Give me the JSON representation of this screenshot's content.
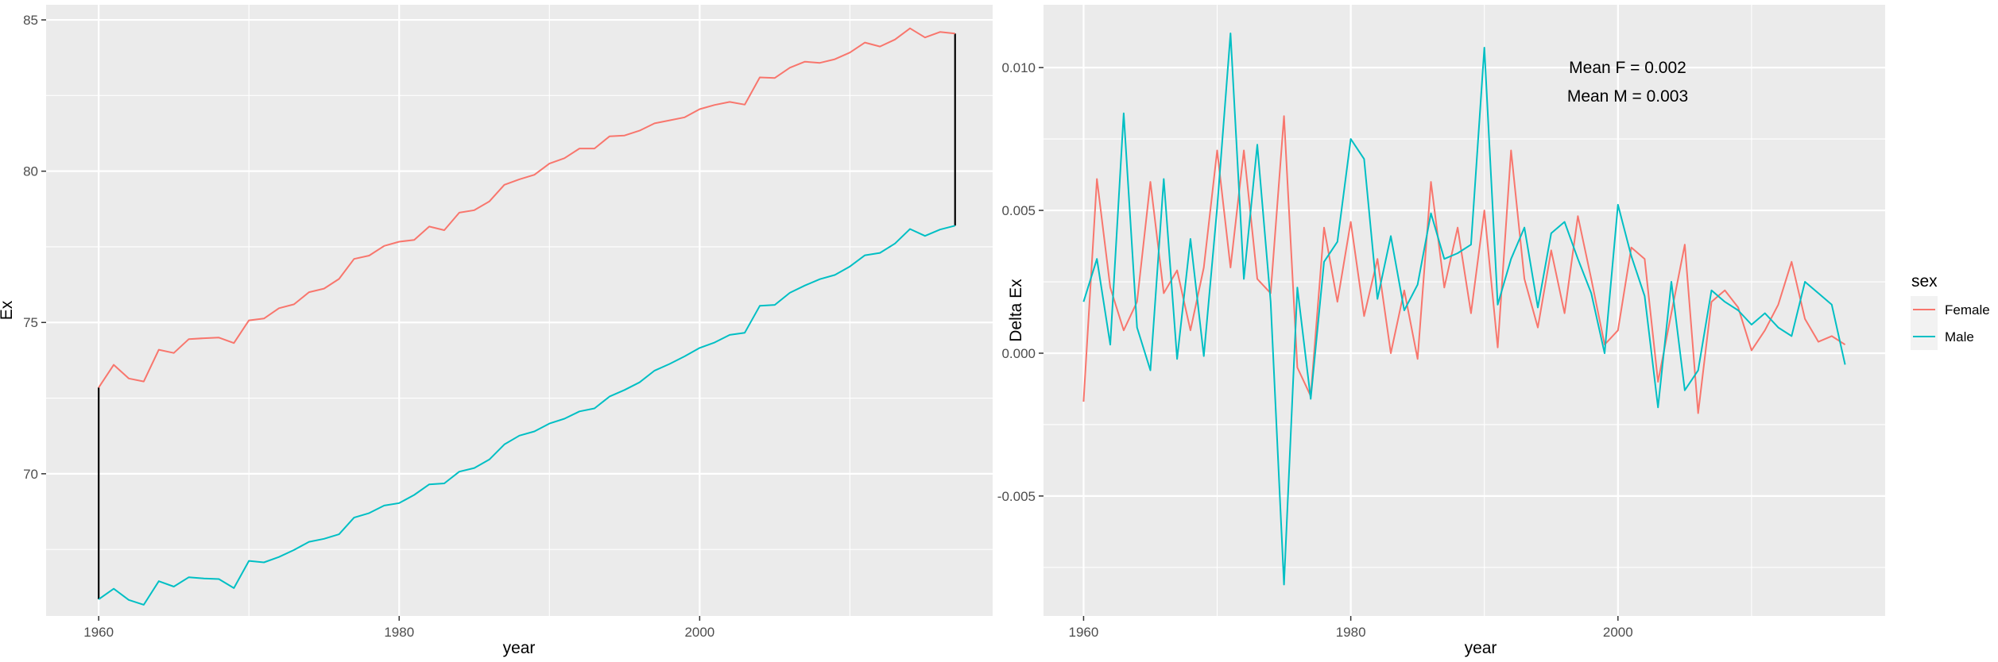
{
  "colors": {
    "female": "#F8766D",
    "male": "#00BFC4",
    "panel": "#EBEBEB",
    "gap": "#000000"
  },
  "legend": {
    "title": "sex",
    "items": [
      {
        "label": "Female",
        "color": "#F8766D"
      },
      {
        "label": "Male",
        "color": "#00BFC4"
      }
    ]
  },
  "chart_data": [
    {
      "type": "line",
      "xlabel": "year",
      "ylabel": "Ex",
      "xlim": [
        1956.5,
        2019.5
      ],
      "ylim": [
        65.3,
        85.5
      ],
      "x_breaks": [
        1960,
        1980,
        2000
      ],
      "x_tick_labels": [
        "1960",
        "1980",
        "2000"
      ],
      "y_breaks": [
        70,
        75,
        80,
        85
      ],
      "y_tick_labels": [
        "70",
        "75",
        "80",
        "85"
      ],
      "grid": true,
      "x": [
        1960,
        1961,
        1962,
        1963,
        1964,
        1965,
        1966,
        1967,
        1968,
        1969,
        1970,
        1971,
        1972,
        1973,
        1974,
        1975,
        1976,
        1977,
        1978,
        1979,
        1980,
        1981,
        1982,
        1983,
        1984,
        1985,
        1986,
        1987,
        1988,
        1989,
        1990,
        1991,
        1992,
        1993,
        1994,
        1995,
        1996,
        1997,
        1998,
        1999,
        2000,
        2001,
        2002,
        2003,
        2004,
        2005,
        2006,
        2007,
        2008,
        2009,
        2010,
        2011,
        2012,
        2013,
        2014,
        2015,
        2016,
        2017
      ],
      "series": [
        {
          "name": "Female",
          "values": [
            72.85,
            73.6,
            73.15,
            73.05,
            74.1,
            73.99,
            74.45,
            74.48,
            74.5,
            74.32,
            75.07,
            75.13,
            75.47,
            75.6,
            76.0,
            76.12,
            76.44,
            77.1,
            77.21,
            77.53,
            77.67,
            77.73,
            78.17,
            78.05,
            78.63,
            78.71,
            79.0,
            79.55,
            79.73,
            79.88,
            80.25,
            80.43,
            80.75,
            80.75,
            81.15,
            81.18,
            81.34,
            81.58,
            81.68,
            81.78,
            82.05,
            82.19,
            82.29,
            82.2,
            83.1,
            83.08,
            83.42,
            83.62,
            83.58,
            83.7,
            83.92,
            84.25,
            84.12,
            84.35,
            84.72,
            84.42,
            84.6,
            84.55
          ]
        },
        {
          "name": "Male",
          "values": [
            65.85,
            66.2,
            65.83,
            65.67,
            66.45,
            66.27,
            66.58,
            66.54,
            66.52,
            66.22,
            67.12,
            67.07,
            67.25,
            67.48,
            67.75,
            67.85,
            68.0,
            68.55,
            68.7,
            68.95,
            69.03,
            69.3,
            69.65,
            69.68,
            70.07,
            70.19,
            70.47,
            70.97,
            71.26,
            71.4,
            71.66,
            71.82,
            72.06,
            72.16,
            72.55,
            72.77,
            73.02,
            73.41,
            73.63,
            73.88,
            74.16,
            74.34,
            74.59,
            74.66,
            75.55,
            75.58,
            75.98,
            76.22,
            76.43,
            76.57,
            76.85,
            77.22,
            77.3,
            77.61,
            78.09,
            77.86,
            78.07,
            78.2
          ]
        }
      ],
      "gap_segments": [
        {
          "x": 1960,
          "from": 65.85,
          "to": 72.85
        },
        {
          "x": 2017,
          "from": 78.2,
          "to": 84.55
        }
      ]
    },
    {
      "type": "line",
      "xlabel": "year",
      "ylabel": "Delta Ex",
      "xlim": [
        1957,
        2020
      ],
      "ylim": [
        -0.0092,
        0.0122
      ],
      "x_breaks": [
        1960,
        1980,
        2000
      ],
      "x_tick_labels": [
        "1960",
        "1980",
        "2000"
      ],
      "y_breaks": [
        -0.005,
        0.0,
        0.005,
        0.01
      ],
      "y_tick_labels": [
        "-0.005",
        "0.000",
        "0.005",
        "0.010"
      ],
      "grid": true,
      "annotations": [
        "Mean F = 0.002",
        "Mean M = 0.003"
      ],
      "x": [
        1960,
        1961,
        1962,
        1963,
        1964,
        1965,
        1966,
        1967,
        1968,
        1969,
        1970,
        1971,
        1972,
        1973,
        1974,
        1975,
        1976,
        1977,
        1978,
        1979,
        1980,
        1981,
        1982,
        1983,
        1984,
        1985,
        1986,
        1987,
        1988,
        1989,
        1990,
        1991,
        1992,
        1993,
        1994,
        1995,
        1996,
        1997,
        1998,
        1999,
        2000,
        2001,
        2002,
        2003,
        2004,
        2005,
        2006,
        2007,
        2008,
        2009,
        2010,
        2011,
        2012,
        2013,
        2014,
        2015,
        2016,
        2017
      ],
      "series": [
        {
          "name": "Female",
          "values": [
            -0.0017,
            0.0061,
            0.0023,
            0.0008,
            0.0018,
            0.006,
            0.0021,
            0.0029,
            0.0008,
            0.003,
            0.0071,
            0.003,
            0.0071,
            0.0026,
            0.0021,
            0.0083,
            -0.0005,
            -0.0015,
            0.0044,
            0.0018,
            0.0046,
            0.0013,
            0.0033,
            0.0,
            0.0022,
            -0.0002,
            0.006,
            0.0023,
            0.0044,
            0.0014,
            0.005,
            0.0002,
            0.0071,
            0.0026,
            0.0009,
            0.0036,
            0.0014,
            0.0048,
            0.0026,
            0.0003,
            0.0008,
            0.0037,
            0.0033,
            -0.001,
            0.0014,
            0.0038,
            -0.0021,
            0.0018,
            0.0022,
            0.0016,
            0.0001,
            0.0008,
            0.0017,
            0.0032,
            0.0012,
            0.0004,
            0.0006,
            0.0003
          ]
        },
        {
          "name": "Male",
          "values": [
            0.0018,
            0.0033,
            0.0003,
            0.0084,
            0.0009,
            -0.0006,
            0.0061,
            -0.0002,
            0.004,
            -0.0001,
            0.0051,
            0.0112,
            0.0026,
            0.0073,
            0.0018,
            -0.0081,
            0.0023,
            -0.0016,
            0.0032,
            0.0039,
            0.0075,
            0.0068,
            0.0019,
            0.0041,
            0.0015,
            0.0024,
            0.0049,
            0.0033,
            0.0035,
            0.0038,
            0.0107,
            0.0017,
            0.0033,
            0.0044,
            0.0016,
            0.0042,
            0.0046,
            0.0033,
            0.0021,
            0.0,
            0.0052,
            0.0034,
            0.002,
            -0.0019,
            0.0025,
            -0.0013,
            -0.0006,
            0.0022,
            0.0018,
            0.0015,
            0.001,
            0.0014,
            0.0009,
            0.0006,
            0.0025,
            0.0021,
            0.0017,
            -0.0004
          ]
        }
      ]
    }
  ]
}
